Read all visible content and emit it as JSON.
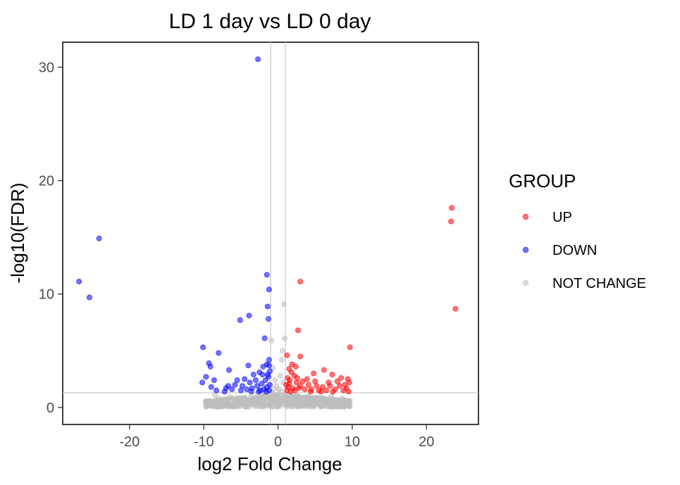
{
  "chart_data": {
    "type": "scatter",
    "title": "LD 1 day vs LD 0 day",
    "xlabel": "log2 Fold Change",
    "ylabel": "-log10(FDR)",
    "xlim": [
      -29,
      27
    ],
    "ylim": [
      -1.5,
      32.2
    ],
    "x_ticks": [
      -20,
      -10,
      0,
      10,
      20
    ],
    "y_ticks": [
      0,
      10,
      20,
      30
    ],
    "grid": false,
    "thresholds": {
      "vertical_x": [
        -1,
        1
      ],
      "horizontal_y": 1.3
    },
    "legend": {
      "title": "GROUP",
      "position": "right",
      "entries": [
        "UP",
        "DOWN",
        "NOT CHANGE"
      ]
    },
    "colors": {
      "UP": "#ff0000",
      "DOWN": "#0000ff",
      "NOT CHANGE": "#bebebe"
    },
    "series": [
      {
        "name": "UP",
        "points": [
          [
            23.4,
            17.6
          ],
          [
            23.3,
            16.4
          ],
          [
            23.9,
            8.7
          ],
          [
            3.0,
            11.1
          ],
          [
            2.7,
            6.8
          ],
          [
            9.7,
            5.3
          ],
          [
            1.2,
            4.6
          ],
          [
            3.0,
            4.5
          ],
          [
            6.2,
            3.3
          ],
          [
            2.4,
            3.6
          ],
          [
            1.9,
            3.8
          ],
          [
            4.8,
            3.0
          ],
          [
            9.4,
            2.5
          ],
          [
            7.3,
            2.9
          ],
          [
            8.5,
            2.6
          ],
          [
            1.5,
            3.4
          ],
          [
            1.8,
            3.1
          ],
          [
            2.2,
            2.8
          ],
          [
            1.3,
            2.6
          ],
          [
            1.6,
            2.4
          ],
          [
            2.5,
            2.2
          ],
          [
            3.3,
            2.3
          ],
          [
            4.1,
            2.0
          ],
          [
            5.2,
            1.9
          ],
          [
            6.0,
            1.8
          ],
          [
            7.0,
            1.9
          ],
          [
            8.3,
            1.9
          ],
          [
            9.0,
            2.0
          ],
          [
            9.6,
            2.2
          ],
          [
            1.1,
            2.0
          ],
          [
            1.4,
            1.8
          ],
          [
            2.0,
            1.7
          ],
          [
            2.8,
            1.7
          ],
          [
            3.6,
            1.6
          ],
          [
            4.5,
            1.6
          ],
          [
            5.5,
            1.5
          ],
          [
            6.5,
            1.5
          ],
          [
            7.7,
            1.6
          ],
          [
            8.8,
            1.5
          ],
          [
            9.2,
            1.7
          ],
          [
            1.2,
            1.5
          ],
          [
            1.7,
            1.4
          ],
          [
            2.3,
            1.5
          ],
          [
            3.0,
            1.9
          ],
          [
            3.9,
            2.5
          ],
          [
            5.0,
            2.3
          ],
          [
            6.8,
            2.2
          ],
          [
            8.0,
            2.3
          ],
          [
            1.5,
            2.1
          ],
          [
            2.6,
            2.6
          ],
          [
            4.4,
            1.4
          ],
          [
            5.8,
            1.4
          ],
          [
            7.4,
            1.4
          ],
          [
            9.5,
            1.4
          ]
        ]
      },
      {
        "name": "DOWN",
        "points": [
          [
            -2.7,
            30.7
          ],
          [
            -24.1,
            14.9
          ],
          [
            -26.8,
            11.1
          ],
          [
            -25.4,
            9.7
          ],
          [
            -1.5,
            11.7
          ],
          [
            -1.2,
            10.4
          ],
          [
            -1.4,
            8.9
          ],
          [
            -3.9,
            8.1
          ],
          [
            -1.3,
            7.8
          ],
          [
            -5.1,
            7.7
          ],
          [
            -1.8,
            6.1
          ],
          [
            -10.1,
            5.3
          ],
          [
            -8.0,
            4.8
          ],
          [
            -6.6,
            3.3
          ],
          [
            -9.3,
            3.9
          ],
          [
            -9.1,
            3.6
          ],
          [
            -4.0,
            3.7
          ],
          [
            -1.2,
            4.2
          ],
          [
            -1.5,
            3.8
          ],
          [
            -2.0,
            3.6
          ],
          [
            -2.5,
            3.1
          ],
          [
            -3.3,
            2.9
          ],
          [
            -4.5,
            2.5
          ],
          [
            -5.5,
            2.4
          ],
          [
            -6.7,
            1.9
          ],
          [
            -9.7,
            2.7
          ],
          [
            -10.2,
            2.2
          ],
          [
            -9.0,
            1.8
          ],
          [
            -1.1,
            3.2
          ],
          [
            -1.3,
            2.7
          ],
          [
            -1.7,
            2.4
          ],
          [
            -2.2,
            2.1
          ],
          [
            -2.8,
            1.9
          ],
          [
            -3.5,
            1.7
          ],
          [
            -4.2,
            1.6
          ],
          [
            -5.0,
            1.5
          ],
          [
            -6.2,
            1.6
          ],
          [
            -7.2,
            1.4
          ],
          [
            -8.3,
            1.5
          ],
          [
            -1.1,
            2.0
          ],
          [
            -1.5,
            1.8
          ],
          [
            -1.9,
            1.6
          ],
          [
            -2.4,
            1.5
          ],
          [
            -3.0,
            2.4
          ],
          [
            -3.8,
            2.2
          ],
          [
            -4.8,
            1.9
          ],
          [
            -1.2,
            1.5
          ],
          [
            -1.6,
            1.4
          ],
          [
            -2.6,
            1.4
          ],
          [
            -3.6,
            1.4
          ],
          [
            -5.8,
            2.0
          ],
          [
            -7.0,
            1.7
          ],
          [
            -8.6,
            2.4
          ],
          [
            -1.4,
            2.9
          ],
          [
            -2.1,
            2.9
          ],
          [
            -1.2,
            3.7
          ]
        ]
      },
      {
        "name": "NOT CHANGE",
        "points": [
          [
            0.8,
            9.1
          ],
          [
            0.9,
            6.1
          ],
          [
            0.6,
            5.0
          ],
          [
            -0.9,
            5.9
          ],
          [
            0.5,
            4.2
          ],
          [
            -0.7,
            3.5
          ],
          [
            0.3,
            2.8
          ],
          [
            -0.4,
            2.4
          ],
          [
            0.7,
            2.2
          ],
          [
            -0.2,
            1.9
          ],
          [
            0.1,
            1.6
          ],
          [
            -0.6,
            1.6
          ],
          [
            0.4,
            1.4
          ],
          [
            -0.8,
            1.3
          ],
          [
            0.9,
            1.1
          ],
          [
            -0.3,
            1.0
          ],
          [
            0.2,
            0.9
          ],
          [
            -0.5,
            0.7
          ],
          [
            0.6,
            0.6
          ],
          [
            -0.1,
            0.5
          ],
          [
            -8.5,
            1.1
          ],
          [
            -8.0,
            0.8
          ],
          [
            -7.3,
            0.6
          ],
          [
            -6.5,
            0.9
          ],
          [
            -5.8,
            0.4
          ],
          [
            -5.0,
            0.7
          ],
          [
            -4.2,
            0.5
          ],
          [
            -3.5,
            0.9
          ],
          [
            -2.8,
            0.6
          ],
          [
            -2.2,
            1.1
          ],
          [
            -1.6,
            0.8
          ],
          [
            -1.1,
            0.5
          ],
          [
            1.3,
            0.9
          ],
          [
            1.8,
            0.6
          ],
          [
            2.5,
            1.0
          ],
          [
            3.2,
            0.5
          ],
          [
            4.0,
            0.8
          ],
          [
            4.8,
            0.4
          ],
          [
            5.6,
            0.9
          ],
          [
            6.4,
            0.6
          ],
          [
            7.2,
            1.0
          ],
          [
            8.0,
            0.5
          ],
          [
            8.7,
            0.8
          ],
          [
            9.2,
            0.3
          ],
          [
            -9.0,
            0.4
          ],
          [
            -7.8,
            0.2
          ],
          [
            -6.0,
            0.1
          ],
          [
            -4.5,
            0.2
          ],
          [
            -3.0,
            0.1
          ],
          [
            -1.8,
            0.2
          ],
          [
            1.5,
            0.2
          ],
          [
            3.0,
            0.1
          ],
          [
            4.5,
            0.2
          ],
          [
            6.0,
            0.1
          ],
          [
            7.5,
            0.2
          ],
          [
            8.8,
            0.1
          ],
          [
            -2.0,
            0.3
          ],
          [
            2.0,
            0.3
          ],
          [
            0.0,
            0.3
          ]
        ]
      }
    ]
  }
}
